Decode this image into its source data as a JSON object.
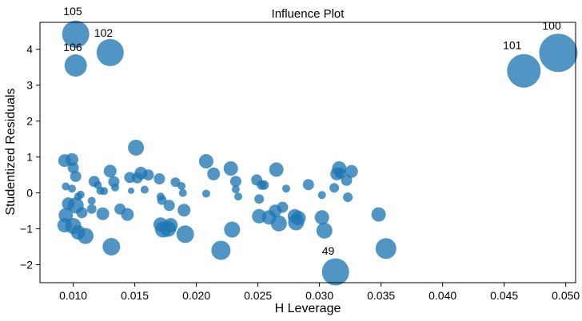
{
  "chart_data": {
    "type": "scatter",
    "title": "Influence Plot",
    "xlabel": "H Leverage",
    "ylabel": "Studentized Residuals",
    "xlim": [
      0.0073,
      0.0508
    ],
    "ylim": [
      -2.5,
      4.75
    ],
    "xticks": [
      "0.010",
      "0.015",
      "0.020",
      "0.025",
      "0.030",
      "0.035",
      "0.040",
      "0.045",
      "0.050"
    ],
    "xtick_values": [
      0.01,
      0.015,
      0.02,
      0.025,
      0.03,
      0.035,
      0.04,
      0.045,
      0.05
    ],
    "yticks": [
      "−2",
      "−1",
      "0",
      "1",
      "2",
      "3",
      "4"
    ],
    "ytick_values": [
      -2,
      -1,
      0,
      1,
      2,
      3,
      4
    ],
    "grid": false,
    "marker_color": "#1f77b4",
    "annotations": [
      {
        "text": "105",
        "x": 0.0092,
        "y": 4.95
      },
      {
        "text": "102",
        "x": 0.0117,
        "y": 4.35
      },
      {
        "text": "106",
        "x": 0.0092,
        "y": 3.95
      },
      {
        "text": "100",
        "x": 0.0481,
        "y": 4.55
      },
      {
        "text": "101",
        "x": 0.0449,
        "y": 4.0
      },
      {
        "text": "49",
        "x": 0.0302,
        "y": -1.72
      }
    ],
    "points": [
      {
        "x": 0.0102,
        "y": 4.42,
        "s": 17
      },
      {
        "x": 0.013,
        "y": 3.91,
        "s": 17
      },
      {
        "x": 0.0102,
        "y": 3.55,
        "s": 14
      },
      {
        "x": 0.0494,
        "y": 3.9,
        "s": 24
      },
      {
        "x": 0.0466,
        "y": 3.4,
        "s": 21
      },
      {
        "x": 0.0313,
        "y": -2.2,
        "s": 17
      },
      {
        "x": 0.0151,
        "y": 1.26,
        "s": 10
      },
      {
        "x": 0.0093,
        "y": 0.9,
        "s": 8
      },
      {
        "x": 0.0099,
        "y": 0.93,
        "s": 8
      },
      {
        "x": 0.01,
        "y": 0.7,
        "s": 7
      },
      {
        "x": 0.0102,
        "y": 0.46,
        "s": 7
      },
      {
        "x": 0.0094,
        "y": 0.18,
        "s": 5
      },
      {
        "x": 0.0099,
        "y": 0.12,
        "s": 5
      },
      {
        "x": 0.0096,
        "y": -0.3,
        "s": 8
      },
      {
        "x": 0.0094,
        "y": -0.62,
        "s": 9
      },
      {
        "x": 0.0093,
        "y": -0.9,
        "s": 9
      },
      {
        "x": 0.01,
        "y": -0.92,
        "s": 10
      },
      {
        "x": 0.0102,
        "y": -0.35,
        "s": 10
      },
      {
        "x": 0.0104,
        "y": -0.1,
        "s": 5
      },
      {
        "x": 0.0106,
        "y": -0.05,
        "s": 5
      },
      {
        "x": 0.0104,
        "y": -1.1,
        "s": 9
      },
      {
        "x": 0.011,
        "y": -1.2,
        "s": 10
      },
      {
        "x": 0.0107,
        "y": -0.55,
        "s": 7
      },
      {
        "x": 0.0115,
        "y": -0.45,
        "s": 6
      },
      {
        "x": 0.0117,
        "y": 0.32,
        "s": 7
      },
      {
        "x": 0.012,
        "y": 0.22,
        "s": 5
      },
      {
        "x": 0.0122,
        "y": 0.06,
        "s": 5
      },
      {
        "x": 0.0125,
        "y": 0.05,
        "s": 5
      },
      {
        "x": 0.0115,
        "y": -0.22,
        "s": 5
      },
      {
        "x": 0.0124,
        "y": -0.58,
        "s": 8
      },
      {
        "x": 0.013,
        "y": 0.61,
        "s": 8
      },
      {
        "x": 0.0133,
        "y": 0.31,
        "s": 7
      },
      {
        "x": 0.0134,
        "y": 0.15,
        "s": 5
      },
      {
        "x": 0.0131,
        "y": -1.5,
        "s": 11
      },
      {
        "x": 0.0138,
        "y": -0.45,
        "s": 7
      },
      {
        "x": 0.0144,
        "y": -0.6,
        "s": 8
      },
      {
        "x": 0.0146,
        "y": 0.43,
        "s": 7
      },
      {
        "x": 0.0147,
        "y": 0.06,
        "s": 4
      },
      {
        "x": 0.0152,
        "y": 0.42,
        "s": 7
      },
      {
        "x": 0.0155,
        "y": 0.55,
        "s": 8
      },
      {
        "x": 0.0158,
        "y": 0.09,
        "s": 5
      },
      {
        "x": 0.0161,
        "y": 0.5,
        "s": 7
      },
      {
        "x": 0.017,
        "y": 0.39,
        "s": 7
      },
      {
        "x": 0.0171,
        "y": -0.1,
        "s": 5
      },
      {
        "x": 0.0172,
        "y": -0.2,
        "s": 6
      },
      {
        "x": 0.0171,
        "y": -0.88,
        "s": 9
      },
      {
        "x": 0.0173,
        "y": -1.02,
        "s": 10
      },
      {
        "x": 0.0177,
        "y": -1.0,
        "s": 10
      },
      {
        "x": 0.0179,
        "y": -0.9,
        "s": 9
      },
      {
        "x": 0.0178,
        "y": -0.35,
        "s": 7
      },
      {
        "x": 0.0183,
        "y": 0.3,
        "s": 6
      },
      {
        "x": 0.0188,
        "y": 0.19,
        "s": 5
      },
      {
        "x": 0.0189,
        "y": 0.0,
        "s": 5
      },
      {
        "x": 0.019,
        "y": -0.48,
        "s": 8
      },
      {
        "x": 0.0191,
        "y": -1.15,
        "s": 11
      },
      {
        "x": 0.0208,
        "y": 0.88,
        "s": 9
      },
      {
        "x": 0.0208,
        "y": -0.02,
        "s": 5
      },
      {
        "x": 0.0214,
        "y": 0.53,
        "s": 8
      },
      {
        "x": 0.022,
        "y": -1.6,
        "s": 12
      },
      {
        "x": 0.0228,
        "y": 0.68,
        "s": 9
      },
      {
        "x": 0.0232,
        "y": 0.32,
        "s": 7
      },
      {
        "x": 0.0232,
        "y": 0.1,
        "s": 5
      },
      {
        "x": 0.0234,
        "y": -0.1,
        "s": 5
      },
      {
        "x": 0.0229,
        "y": -1.02,
        "s": 10
      },
      {
        "x": 0.0249,
        "y": 0.36,
        "s": 7
      },
      {
        "x": 0.0253,
        "y": 0.22,
        "s": 6
      },
      {
        "x": 0.0255,
        "y": 0.22,
        "s": 6
      },
      {
        "x": 0.0251,
        "y": -0.17,
        "s": 6
      },
      {
        "x": 0.0251,
        "y": -0.65,
        "s": 9
      },
      {
        "x": 0.0259,
        "y": -0.68,
        "s": 9
      },
      {
        "x": 0.0264,
        "y": -0.5,
        "s": 8
      },
      {
        "x": 0.0265,
        "y": 0.65,
        "s": 9
      },
      {
        "x": 0.0267,
        "y": -0.85,
        "s": 10
      },
      {
        "x": 0.027,
        "y": -0.4,
        "s": 7
      },
      {
        "x": 0.0273,
        "y": 0.12,
        "s": 5
      },
      {
        "x": 0.028,
        "y": -0.65,
        "s": 9
      },
      {
        "x": 0.0281,
        "y": -0.82,
        "s": 10
      },
      {
        "x": 0.0283,
        "y": -0.7,
        "s": 9
      },
      {
        "x": 0.0291,
        "y": 0.23,
        "s": 7
      },
      {
        "x": 0.0302,
        "y": -0.06,
        "s": 5
      },
      {
        "x": 0.0302,
        "y": -0.68,
        "s": 9
      },
      {
        "x": 0.0304,
        "y": -1.05,
        "s": 10
      },
      {
        "x": 0.0312,
        "y": 0.14,
        "s": 6
      },
      {
        "x": 0.0314,
        "y": 0.53,
        "s": 8
      },
      {
        "x": 0.0316,
        "y": 0.68,
        "s": 9
      },
      {
        "x": 0.0317,
        "y": 0.55,
        "s": 7
      },
      {
        "x": 0.0322,
        "y": 0.35,
        "s": 7
      },
      {
        "x": 0.0323,
        "y": -0.12,
        "s": 6
      },
      {
        "x": 0.0326,
        "y": 0.6,
        "s": 8
      },
      {
        "x": 0.0348,
        "y": -0.6,
        "s": 9
      },
      {
        "x": 0.0354,
        "y": -1.55,
        "s": 13
      }
    ]
  }
}
